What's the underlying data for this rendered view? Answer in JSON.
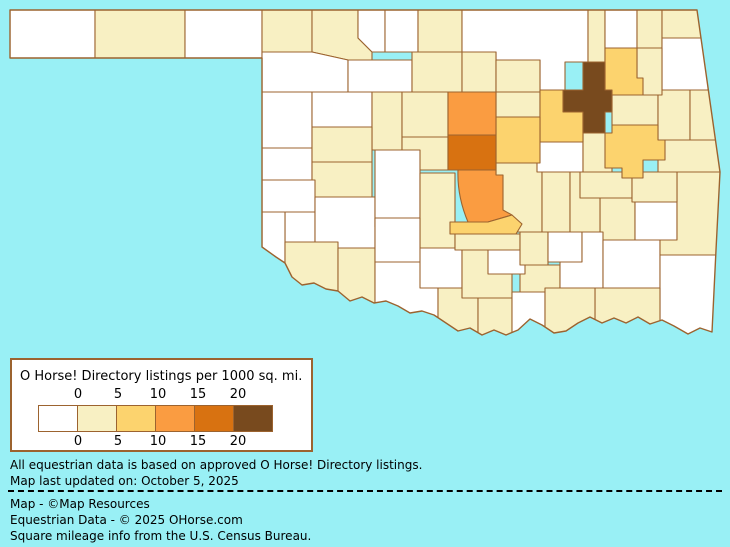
{
  "map": {
    "background_color": "#99F0F5",
    "county_border_color": "#9C632F",
    "class_colors": {
      "1": "#FFFFFF",
      "2": "#F8F0C3",
      "3": "#FCD36E",
      "4": "#FA9C41",
      "5": "#D87211",
      "6": "#784A1E"
    },
    "class_ranges": {
      "1": "0",
      "2": "0-5",
      "3": "5-10",
      "4": "10-15",
      "5": "15-20",
      "6": "20+"
    },
    "counties": [
      {
        "id": "cimarron",
        "name": "Cimarron",
        "cls": "1"
      },
      {
        "id": "texas",
        "name": "Texas",
        "cls": "2"
      },
      {
        "id": "beaver",
        "name": "Beaver",
        "cls": "1"
      },
      {
        "id": "harper",
        "name": "Harper",
        "cls": "2"
      },
      {
        "id": "woods",
        "name": "Woods",
        "cls": "2"
      },
      {
        "id": "alfalfa",
        "name": "Alfalfa",
        "cls": "1"
      },
      {
        "id": "grant",
        "name": "Grant",
        "cls": "1"
      },
      {
        "id": "kay",
        "name": "Kay",
        "cls": "2"
      },
      {
        "id": "osage",
        "name": "Osage",
        "cls": "1"
      },
      {
        "id": "washington",
        "name": "Washington",
        "cls": "2"
      },
      {
        "id": "nowata",
        "name": "Nowata",
        "cls": "1"
      },
      {
        "id": "craig",
        "name": "Craig",
        "cls": "2"
      },
      {
        "id": "ottawa",
        "name": "Ottawa",
        "cls": "2"
      },
      {
        "id": "delaware",
        "name": "Delaware",
        "cls": "1"
      },
      {
        "id": "woodward",
        "name": "Woodward",
        "cls": "1"
      },
      {
        "id": "major",
        "name": "Major",
        "cls": "1"
      },
      {
        "id": "garfield",
        "name": "Garfield",
        "cls": "2"
      },
      {
        "id": "noble",
        "name": "Noble",
        "cls": "2"
      },
      {
        "id": "pawnee",
        "name": "Pawnee",
        "cls": "2"
      },
      {
        "id": "ellis",
        "name": "Ellis",
        "cls": "1"
      },
      {
        "id": "dewey",
        "name": "Dewey",
        "cls": "1"
      },
      {
        "id": "blaine",
        "name": "Blaine",
        "cls": "2"
      },
      {
        "id": "kingfisher",
        "name": "Kingfisher",
        "cls": "2"
      },
      {
        "id": "payne",
        "name": "Payne",
        "cls": "2"
      },
      {
        "id": "rogermills",
        "name": "Roger Mills",
        "cls": "1"
      },
      {
        "id": "custer",
        "name": "Custer",
        "cls": "2"
      },
      {
        "id": "washita",
        "name": "Washita",
        "cls": "2"
      },
      {
        "id": "canadian",
        "name": "Canadian",
        "cls": "2"
      },
      {
        "id": "beckham",
        "name": "Beckham",
        "cls": "1"
      },
      {
        "id": "greer",
        "name": "Greer",
        "cls": "1"
      },
      {
        "id": "harmon",
        "name": "Harmon",
        "cls": "1"
      },
      {
        "id": "kiowa",
        "name": "Kiowa",
        "cls": "1"
      },
      {
        "id": "caddo",
        "name": "Caddo",
        "cls": "1"
      },
      {
        "id": "grady",
        "name": "Grady",
        "cls": "2"
      },
      {
        "id": "jackson",
        "name": "Jackson",
        "cls": "2"
      },
      {
        "id": "tillman",
        "name": "Tillman",
        "cls": "2"
      },
      {
        "id": "comanche",
        "name": "Comanche",
        "cls": "1"
      },
      {
        "id": "cotton",
        "name": "Cotton",
        "cls": "1"
      },
      {
        "id": "stephens",
        "name": "Stephens",
        "cls": "1"
      },
      {
        "id": "jefferson",
        "name": "Jefferson",
        "cls": "2"
      },
      {
        "id": "carter",
        "name": "Carter",
        "cls": "2"
      },
      {
        "id": "love",
        "name": "Love",
        "cls": "2"
      },
      {
        "id": "marshall",
        "name": "Marshall",
        "cls": "1"
      },
      {
        "id": "johnston",
        "name": "Johnston",
        "cls": "2"
      },
      {
        "id": "garvin",
        "name": "Garvin",
        "cls": "2"
      },
      {
        "id": "murray",
        "name": "Murray",
        "cls": "1"
      },
      {
        "id": "pontotoc",
        "name": "Pontotoc",
        "cls": "2"
      },
      {
        "id": "coal",
        "name": "Coal",
        "cls": "1"
      },
      {
        "id": "atoka",
        "name": "Atoka",
        "cls": "1"
      },
      {
        "id": "pushmataha",
        "name": "Pushmataha",
        "cls": "1"
      },
      {
        "id": "mccurtain",
        "name": "McCurtain",
        "cls": "1"
      },
      {
        "id": "choctaw",
        "name": "Choctaw",
        "cls": "2"
      },
      {
        "id": "bryan",
        "name": "Bryan",
        "cls": "2"
      },
      {
        "id": "pottawatomie",
        "name": "Pottawatomie",
        "cls": "2"
      },
      {
        "id": "seminole",
        "name": "Seminole",
        "cls": "2"
      },
      {
        "id": "hughes",
        "name": "Hughes",
        "cls": "2"
      },
      {
        "id": "okfuskee",
        "name": "Okfuskee",
        "cls": "1"
      },
      {
        "id": "okmulgee",
        "name": "Okmulgee",
        "cls": "2"
      },
      {
        "id": "mcintosh",
        "name": "McIntosh",
        "cls": "2"
      },
      {
        "id": "pittsburg",
        "name": "Pittsburg",
        "cls": "2"
      },
      {
        "id": "latimer",
        "name": "Latimer",
        "cls": "1"
      },
      {
        "id": "leflore",
        "name": "Le Flore",
        "cls": "2"
      },
      {
        "id": "haskell",
        "name": "Haskell",
        "cls": "2"
      },
      {
        "id": "wagoner",
        "name": "Wagoner",
        "cls": "2"
      },
      {
        "id": "cherokee",
        "name": "Cherokee",
        "cls": "2"
      },
      {
        "id": "adair",
        "name": "Adair",
        "cls": "2"
      },
      {
        "id": "sequoyah",
        "name": "Sequoyah",
        "cls": "2"
      },
      {
        "id": "mayes",
        "name": "Mayes",
        "cls": "2"
      },
      {
        "id": "rogers",
        "name": "Rogers",
        "cls": "3"
      },
      {
        "id": "creek",
        "name": "Creek",
        "cls": "3"
      },
      {
        "id": "lincoln",
        "name": "Lincoln",
        "cls": "3"
      },
      {
        "id": "muskogee",
        "name": "Muskogee",
        "cls": "3"
      },
      {
        "id": "mcclain",
        "name": "McClain",
        "cls": "3"
      },
      {
        "id": "logan",
        "name": "Logan",
        "cls": "4"
      },
      {
        "id": "cleveland",
        "name": "Cleveland",
        "cls": "4"
      },
      {
        "id": "oklahoma",
        "name": "Oklahoma",
        "cls": "5"
      },
      {
        "id": "tulsa",
        "name": "Tulsa",
        "cls": "6"
      }
    ]
  },
  "legend": {
    "title": "O Horse! Directory listings per 1000 sq. mi.",
    "tick_labels": [
      "0",
      "5",
      "10",
      "15",
      "20"
    ],
    "swatch_classes": [
      "1",
      "2",
      "3",
      "4",
      "5",
      "6"
    ]
  },
  "footer": {
    "note1": "All equestrian data is based on approved O Horse! Directory listings.",
    "note2": "Map last updated on: October 5, 2025",
    "credit1": "Map - ©Map Resources",
    "credit2": "Equestrian Data - © 2025 OHorse.com",
    "credit3": "Square mileage info from the U.S. Census Bureau."
  }
}
